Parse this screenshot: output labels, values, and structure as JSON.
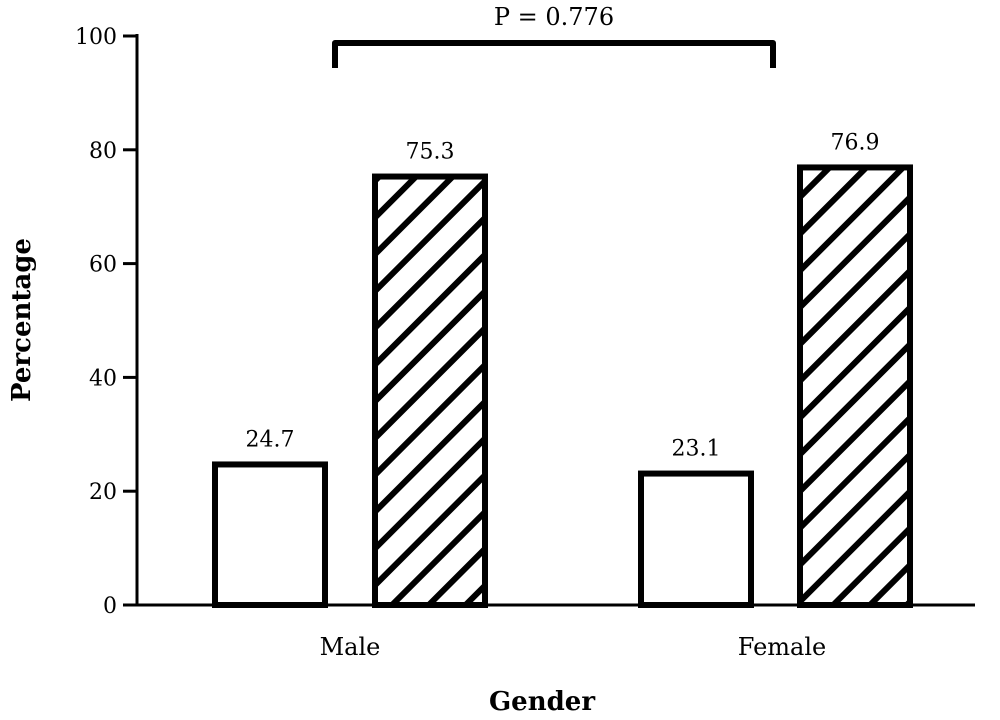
{
  "chart_data": {
    "type": "bar",
    "categories": [
      "Male",
      "Female"
    ],
    "series": [
      {
        "values": [
          24.7,
          23.1
        ],
        "fill": "#ffffff",
        "pattern": "none"
      },
      {
        "values": [
          75.3,
          76.9
        ],
        "fill": "#ffffff",
        "pattern": "diagonal-hatch"
      }
    ],
    "data_labels": [
      [
        "24.7",
        "23.1"
      ],
      [
        "75.3",
        "76.9"
      ]
    ],
    "xlabel": "Gender",
    "ylabel": "Percentage",
    "ylim": [
      0,
      100
    ],
    "yticks": [
      0,
      20,
      40,
      60,
      80,
      100
    ],
    "ytick_labels": [
      "0",
      "20",
      "40",
      "60",
      "80",
      "100"
    ],
    "annotation": {
      "text": "P = 0.776",
      "spans": [
        "Male",
        "Female"
      ]
    },
    "grid": false,
    "legend": "none",
    "colors": {
      "stroke": "#000000",
      "background": "#ffffff"
    }
  }
}
